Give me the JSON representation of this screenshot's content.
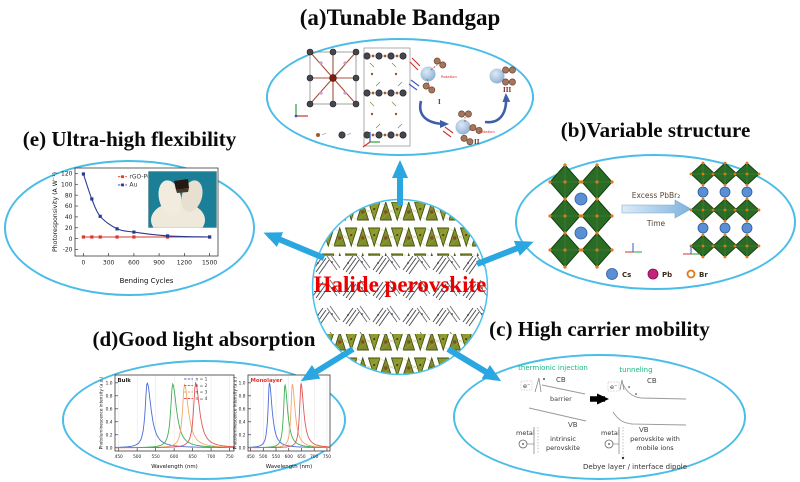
{
  "center": {
    "label": "Halide perovskite"
  },
  "style": {
    "arrow_color": "#2aa7e0",
    "ellipse_border": "#49bde8",
    "center_label_color": "#ea0000",
    "title_color": "#0a0a0a",
    "mechanism_text_color": "#16b97f"
  },
  "panels": {
    "a": {
      "title": "(a)Tunable Bandgap",
      "stage_labels": [
        "I",
        "II",
        "III"
      ],
      "rotation_label": "Rotation"
    },
    "b": {
      "title": "(b)Variable structure",
      "arrow_label_top": "Excess PbBr₂",
      "arrow_label_bottom": "Time",
      "legend": [
        {
          "label": "Cs",
          "color": "#5b8fd4"
        },
        {
          "label": "Pb",
          "color": "#c4247e"
        },
        {
          "label": "Br",
          "color": "#e07818"
        }
      ]
    },
    "c": {
      "title": "(c) High carrier mobility",
      "left": {
        "mechanism": "thermionic injection",
        "electron": "e⁻",
        "cb": "CB",
        "barrier": "barrier",
        "vb": "VB",
        "metal": "metal",
        "material_line1": "intrinsic",
        "material_line2": "perovskite"
      },
      "right": {
        "mechanism": "tunneling",
        "electron": "e⁻",
        "cb": "CB",
        "vb": "VB",
        "metal": "metal",
        "material_line1": "perovskite with",
        "material_line2": "mobile ions"
      },
      "caption": "Debye layer / interface dipole"
    },
    "d": {
      "title": "(d)Good light absorption"
    },
    "e": {
      "title": "(e) Ultra-high flexibility"
    }
  },
  "chart_data": [
    {
      "id": "flexibility",
      "type": "line",
      "panel": "e",
      "xlabel": "Bending Cycles",
      "ylabel": "Photoresponsivity (A W⁻¹)",
      "xlim": [
        -100,
        1600
      ],
      "ylim": [
        -32,
        130
      ],
      "xticks": [
        0,
        300,
        600,
        900,
        1200,
        1500
      ],
      "yticks": [
        -20,
        0,
        20,
        40,
        60,
        80,
        100,
        120
      ],
      "legend_pos": [
        0.3,
        0.04
      ],
      "marker": true,
      "smooth": true,
      "series": [
        {
          "name": "rGO-P60",
          "color": "#d93a2b",
          "x": [
            0,
            100,
            200,
            400,
            600,
            1000,
            1500
          ],
          "y": [
            3,
            3,
            3,
            3,
            3,
            3,
            3
          ]
        },
        {
          "name": "Au",
          "color": "#2b3a8f",
          "x": [
            0,
            100,
            200,
            400,
            600,
            1000,
            1500
          ],
          "y": [
            119,
            73,
            41,
            18,
            12,
            5,
            3
          ]
        }
      ]
    },
    {
      "id": "pl-bulk",
      "type": "line",
      "panel": "d",
      "corner_label": "Bulk",
      "corner_color": "#222222",
      "xlabel": "Wavelength (nm)",
      "ylabel": "Photoluminescence intensity (a.u.)",
      "xlim": [
        440,
        762
      ],
      "ylim": [
        -0.05,
        1.12
      ],
      "xticks": [
        450,
        500,
        550,
        600,
        650,
        700,
        750
      ],
      "yticks": [
        0.0,
        0.2,
        0.4,
        0.6,
        0.8,
        1.0
      ],
      "ydecimals": 1,
      "grid": true,
      "legend_pos": [
        0.58,
        0.0
      ],
      "series": [
        {
          "name": "n = 1",
          "color": "#4a6bd6",
          "peak": 527,
          "height": 1.0
        },
        {
          "name": "n = 2",
          "color": "#3fae55",
          "peak": 596,
          "height": 0.98
        },
        {
          "name": "n = 3",
          "color": "#f0a86a",
          "peak": 628,
          "height": 0.97
        },
        {
          "name": "n = 4",
          "color": "#e25555",
          "peak": 658,
          "height": 1.0
        }
      ]
    },
    {
      "id": "pl-monolayer",
      "type": "line",
      "panel": "d",
      "corner_label": "Monolayer",
      "corner_color": "#e03030",
      "xlabel": "Wavelength (nm)",
      "ylabel": "Photoluminescence intensity (a.u.)",
      "xlim": [
        440,
        762
      ],
      "ylim": [
        -0.05,
        1.12
      ],
      "xticks": [
        450,
        500,
        550,
        600,
        650,
        700,
        750
      ],
      "yticks": [
        0.0,
        0.2,
        0.4,
        0.6,
        0.8,
        1.0
      ],
      "ydecimals": 1,
      "grid": true,
      "series": [
        {
          "name": "n = 1",
          "color": "#4a6bd6",
          "peak": 524,
          "height": 1.0
        },
        {
          "name": "n = 2",
          "color": "#3fae55",
          "peak": 585,
          "height": 0.97
        },
        {
          "name": "n = 3",
          "color": "#f0a86a",
          "peak": 614,
          "height": 0.98
        },
        {
          "name": "n = 4",
          "color": "#e25555",
          "peak": 648,
          "height": 0.99
        }
      ]
    }
  ]
}
